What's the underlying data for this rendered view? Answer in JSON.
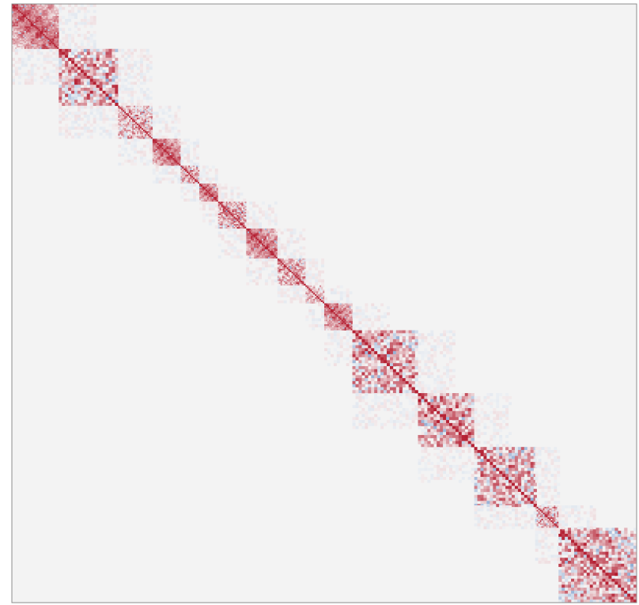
{
  "chart_data": {
    "type": "heatmap",
    "title": "",
    "xlabel": "",
    "ylabel": "",
    "matrix_size": 400,
    "value_range": [
      -1,
      1
    ],
    "colormap": {
      "negative": "#3b6fb6",
      "zero": "#f7f7f7",
      "positive": "#b2182b"
    },
    "background_color": "#f3f3f3",
    "frame_color": "#8c8c8c",
    "grid": false,
    "legend": "none",
    "diagonal_blocks": [
      {
        "start": 0,
        "end": 30,
        "strength": 0.85,
        "texture": 0.35
      },
      {
        "start": 30,
        "end": 68,
        "strength": 0.55,
        "texture": 0.95
      },
      {
        "start": 68,
        "end": 90,
        "strength": 0.45,
        "texture": 0.7
      },
      {
        "start": 90,
        "end": 108,
        "strength": 0.88,
        "texture": 0.3
      },
      {
        "start": 108,
        "end": 120,
        "strength": 0.6,
        "texture": 0.6
      },
      {
        "start": 120,
        "end": 132,
        "strength": 0.88,
        "texture": 0.3
      },
      {
        "start": 132,
        "end": 150,
        "strength": 0.7,
        "texture": 0.8
      },
      {
        "start": 150,
        "end": 170,
        "strength": 0.85,
        "texture": 0.3
      },
      {
        "start": 170,
        "end": 188,
        "strength": 0.65,
        "texture": 0.7
      },
      {
        "start": 188,
        "end": 200,
        "strength": 0.4,
        "texture": 0.5
      },
      {
        "start": 200,
        "end": 218,
        "strength": 0.85,
        "texture": 0.4
      },
      {
        "start": 218,
        "end": 260,
        "strength": 0.55,
        "texture": 0.95
      },
      {
        "start": 260,
        "end": 296,
        "strength": 0.7,
        "texture": 0.8
      },
      {
        "start": 296,
        "end": 335,
        "strength": 0.5,
        "texture": 0.95
      },
      {
        "start": 335,
        "end": 350,
        "strength": 0.55,
        "texture": 0.9
      },
      {
        "start": 350,
        "end": 400,
        "strength": 0.6,
        "texture": 0.95
      }
    ]
  }
}
